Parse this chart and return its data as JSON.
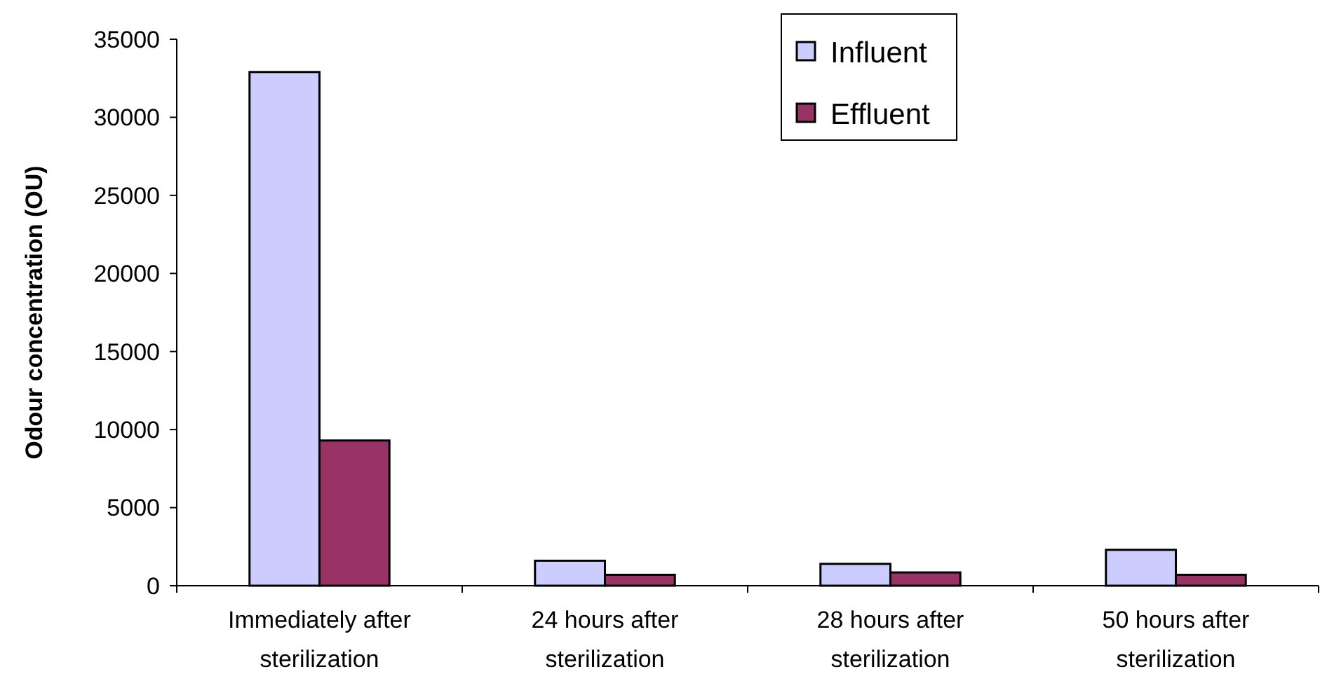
{
  "chart_data": {
    "type": "bar",
    "ylabel": "Odour concentration (OU)",
    "categories": [
      "Immediately after sterilization",
      "24 hours after sterilization",
      "28 hours after sterilization",
      "50 hours after sterilization"
    ],
    "series": [
      {
        "name": "Influent",
        "color": "#ccccff",
        "values": [
          32900,
          1600,
          1400,
          2300
        ]
      },
      {
        "name": "Effluent",
        "color": "#993366",
        "values": [
          9300,
          700,
          850,
          700
        ]
      }
    ],
    "ylim": [
      0,
      35000
    ],
    "yticks": [
      0,
      5000,
      10000,
      15000,
      20000,
      25000,
      30000,
      35000
    ],
    "grid": false,
    "legend": "top right"
  }
}
